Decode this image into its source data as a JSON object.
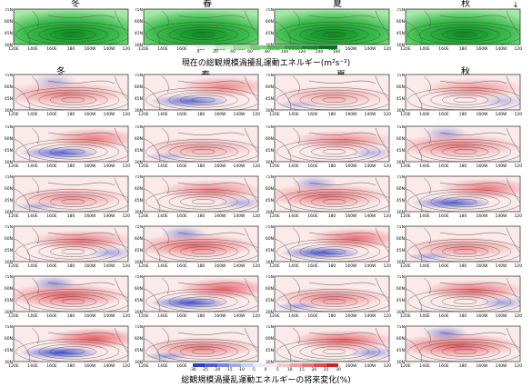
{
  "figure": {
    "seasons": [
      "冬",
      "春",
      "夏",
      "秋"
    ],
    "top_caption": "現在の総観規模渦擾乱運動エネルギー(m²s⁻²)",
    "bottom_caption": "総観規模渦擾乱運動エネルギーの将来変化(%)",
    "top_colorbar_ticks": [
      "0",
      "20",
      "40",
      "60",
      "80",
      "100",
      "120",
      "140",
      "160"
    ],
    "bottom_colorbar_ticks": [
      "-30",
      "-25",
      "-20",
      "-15",
      "-10",
      "-5",
      "0",
      "5",
      "10",
      "15",
      "20",
      "25",
      "30"
    ],
    "lat_labels": [
      "75N",
      "60N",
      "45N",
      "30N"
    ],
    "lon_labels": [
      "120E",
      "140E",
      "160E",
      "180",
      "160W",
      "140W",
      "120W"
    ],
    "corner_mark": "↓",
    "colors": {
      "green_light": "#a6e6a6",
      "green_dark": "#0a8c1e",
      "red": "#e0202a",
      "blue": "#3a4ed0"
    }
  }
}
